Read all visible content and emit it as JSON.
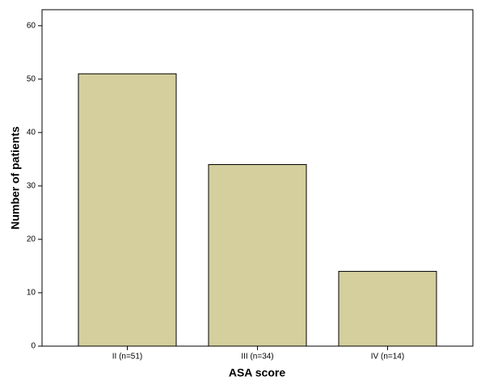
{
  "chart_data": {
    "type": "bar",
    "x_label": "ASA score",
    "y_label": "Number of patients",
    "categories": [
      "II (n=51)",
      "III (n=34)",
      "IV (n=14)"
    ],
    "values": [
      51,
      34,
      14
    ],
    "color": "#d4cf9d",
    "ylim": [
      0,
      63
    ],
    "yticks": [
      0,
      10,
      20,
      30,
      40,
      50,
      60
    ],
    "grid": false
  }
}
